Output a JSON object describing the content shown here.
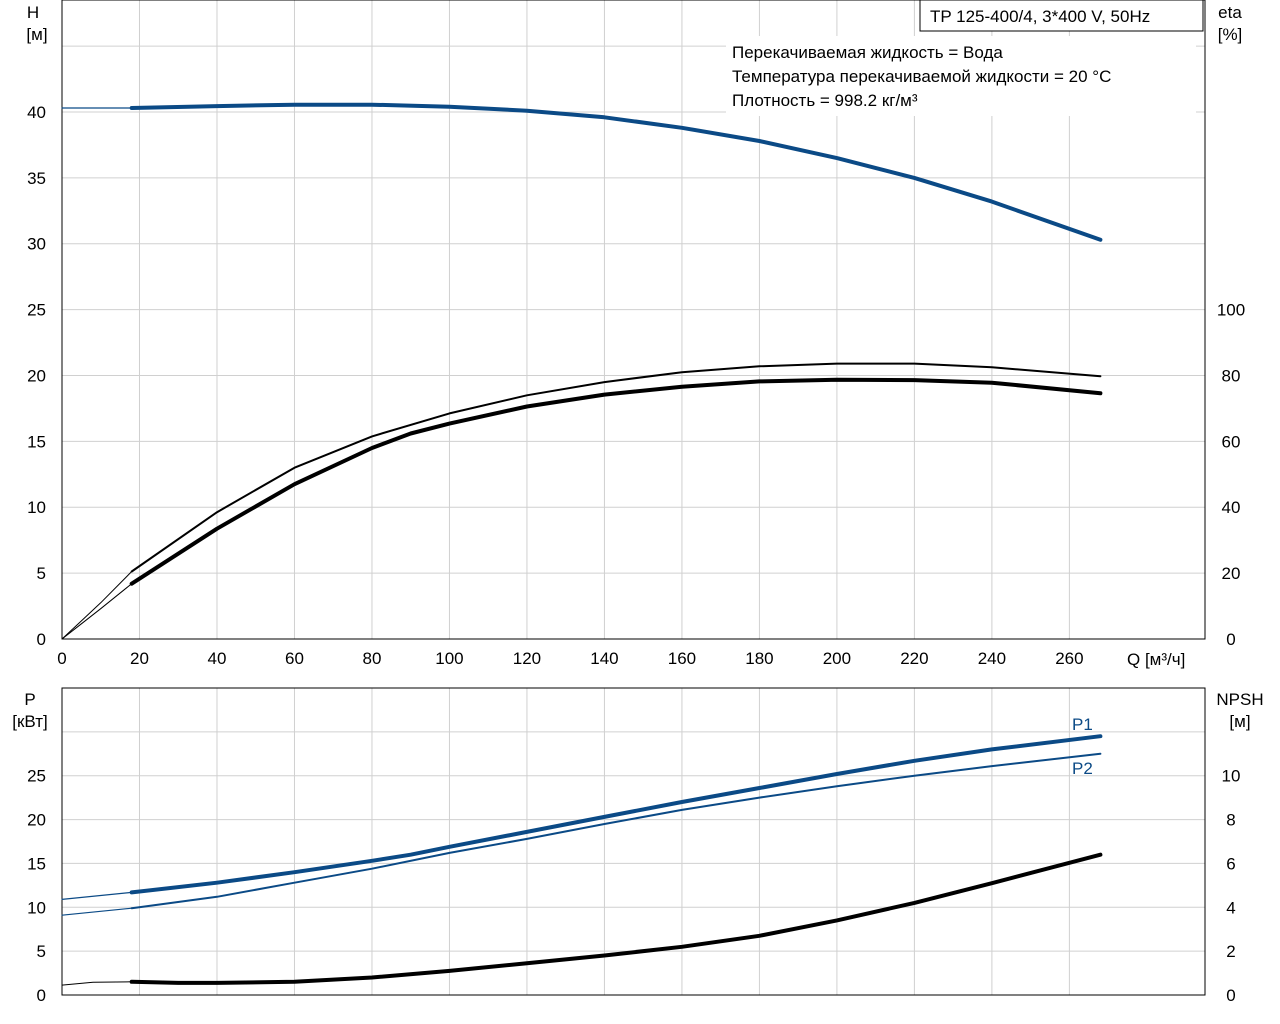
{
  "chart_data": [
    {
      "type": "line",
      "title": "TP 125-400/4, 3*400 V, 50Hz",
      "info_lines": [
        "Перекачиваемая жидкость = Вода",
        "Температура перекачиваемой жидкости = 20 °C",
        "Плотность = 998.2 кг/м³"
      ],
      "xlabel": "Q [м³/ч]",
      "ylabel_left_line1": "H",
      "ylabel_left_line2": "[м]",
      "ylabel_right_line1": "eta",
      "ylabel_right_line2": "[%]",
      "xlim": [
        0,
        295
      ],
      "ylim_left": [
        0,
        48.5
      ],
      "ylim_right": [
        0,
        194
      ],
      "x_ticks": [
        0,
        20,
        40,
        60,
        80,
        100,
        120,
        140,
        160,
        180,
        200,
        220,
        240,
        260
      ],
      "y_ticks_left": [
        0,
        5,
        10,
        15,
        20,
        25,
        30,
        35,
        40
      ],
      "y_ticks_right": [
        0,
        20,
        40,
        60,
        80,
        100
      ],
      "grid": true,
      "series": [
        {
          "axis": "left",
          "color": "#0b4a86",
          "width": 4,
          "x": [
            18,
            40,
            60,
            80,
            100,
            120,
            140,
            160,
            180,
            200,
            220,
            240,
            268
          ],
          "y": [
            40.3,
            40.45,
            40.55,
            40.55,
            40.4,
            40.1,
            39.6,
            38.8,
            37.8,
            36.5,
            35.0,
            33.2,
            30.3
          ]
        },
        {
          "axis": "left",
          "color": "#0b4a86",
          "width": 1.2,
          "x": [
            0,
            18
          ],
          "y": [
            40.3,
            40.3
          ]
        },
        {
          "axis": "right",
          "color": "#000000",
          "width": 2,
          "x": [
            18,
            40,
            60,
            80,
            100,
            120,
            140,
            160,
            180,
            200,
            220,
            240,
            268
          ],
          "y": [
            20.5,
            38.5,
            52,
            61.5,
            68.5,
            74,
            78,
            81,
            82.8,
            83.6,
            83.6,
            82.5,
            79.8
          ]
        },
        {
          "axis": "right",
          "color": "#000000",
          "width": 1,
          "x": [
            0,
            5,
            10,
            18
          ],
          "y": [
            0,
            5.5,
            11,
            20.5
          ]
        },
        {
          "axis": "right",
          "color": "#000000",
          "width": 4,
          "x": [
            18,
            40,
            60,
            80,
            90,
            100,
            120,
            140,
            160,
            180,
            200,
            220,
            240,
            268
          ],
          "y": [
            16.8,
            33.5,
            47,
            58,
            62.4,
            65.4,
            70.6,
            74.2,
            76.6,
            78.2,
            78.7,
            78.6,
            77.8,
            74.6
          ]
        },
        {
          "axis": "right",
          "color": "#000000",
          "width": 1,
          "x": [
            0,
            5,
            10,
            18
          ],
          "y": [
            0,
            4.6,
            9.2,
            16.8
          ]
        }
      ]
    },
    {
      "type": "line",
      "ylabel_left_line1": "P",
      "ylabel_left_line2": "[кВт]",
      "ylabel_right_line1": "NPSH",
      "ylabel_right_line2": "[м]",
      "xlim": [
        0,
        295
      ],
      "ylim_left": [
        0,
        35
      ],
      "ylim_right": [
        0,
        14
      ],
      "x_ticks": [
        0,
        20,
        40,
        60,
        80,
        100,
        120,
        140,
        160,
        180,
        200,
        220,
        240,
        260
      ],
      "y_ticks_left": [
        0,
        5,
        10,
        15,
        20,
        25
      ],
      "y_ticks_right": [
        0,
        2,
        4,
        6,
        8,
        10
      ],
      "grid": true,
      "series": [
        {
          "name": "P1",
          "axis": "left",
          "color": "#0b4a86",
          "width": 4,
          "x": [
            18,
            40,
            60,
            80,
            90,
            100,
            120,
            140,
            160,
            180,
            200,
            220,
            240,
            268
          ],
          "y": [
            11.7,
            12.8,
            14,
            15.3,
            16,
            16.9,
            18.6,
            20.3,
            22,
            23.6,
            25.2,
            26.7,
            28,
            29.5
          ]
        },
        {
          "axis": "left",
          "color": "#0b4a86",
          "width": 1.2,
          "x": [
            0,
            18
          ],
          "y": [
            10.9,
            11.7
          ]
        },
        {
          "name": "P2",
          "axis": "left",
          "color": "#0b4a86",
          "width": 2,
          "x": [
            18,
            40,
            60,
            80,
            100,
            120,
            140,
            160,
            180,
            200,
            220,
            240,
            268
          ],
          "y": [
            9.9,
            11.2,
            12.8,
            14.4,
            16.2,
            17.8,
            19.5,
            21.1,
            22.5,
            23.8,
            25,
            26.1,
            27.5
          ]
        },
        {
          "axis": "left",
          "color": "#0b4a86",
          "width": 1.2,
          "x": [
            0,
            18
          ],
          "y": [
            9.1,
            9.9
          ]
        },
        {
          "axis": "right",
          "color": "#000000",
          "width": 4,
          "x": [
            18,
            30,
            40,
            60,
            80,
            100,
            120,
            140,
            160,
            180,
            200,
            220,
            240,
            268
          ],
          "y": [
            0.6,
            0.55,
            0.55,
            0.6,
            0.8,
            1.1,
            1.45,
            1.8,
            2.2,
            2.7,
            3.4,
            4.2,
            5.1,
            6.4
          ]
        },
        {
          "axis": "right",
          "color": "#000000",
          "width": 1,
          "x": [
            0,
            8,
            18
          ],
          "y": [
            0.45,
            0.58,
            0.6
          ]
        }
      ]
    }
  ]
}
